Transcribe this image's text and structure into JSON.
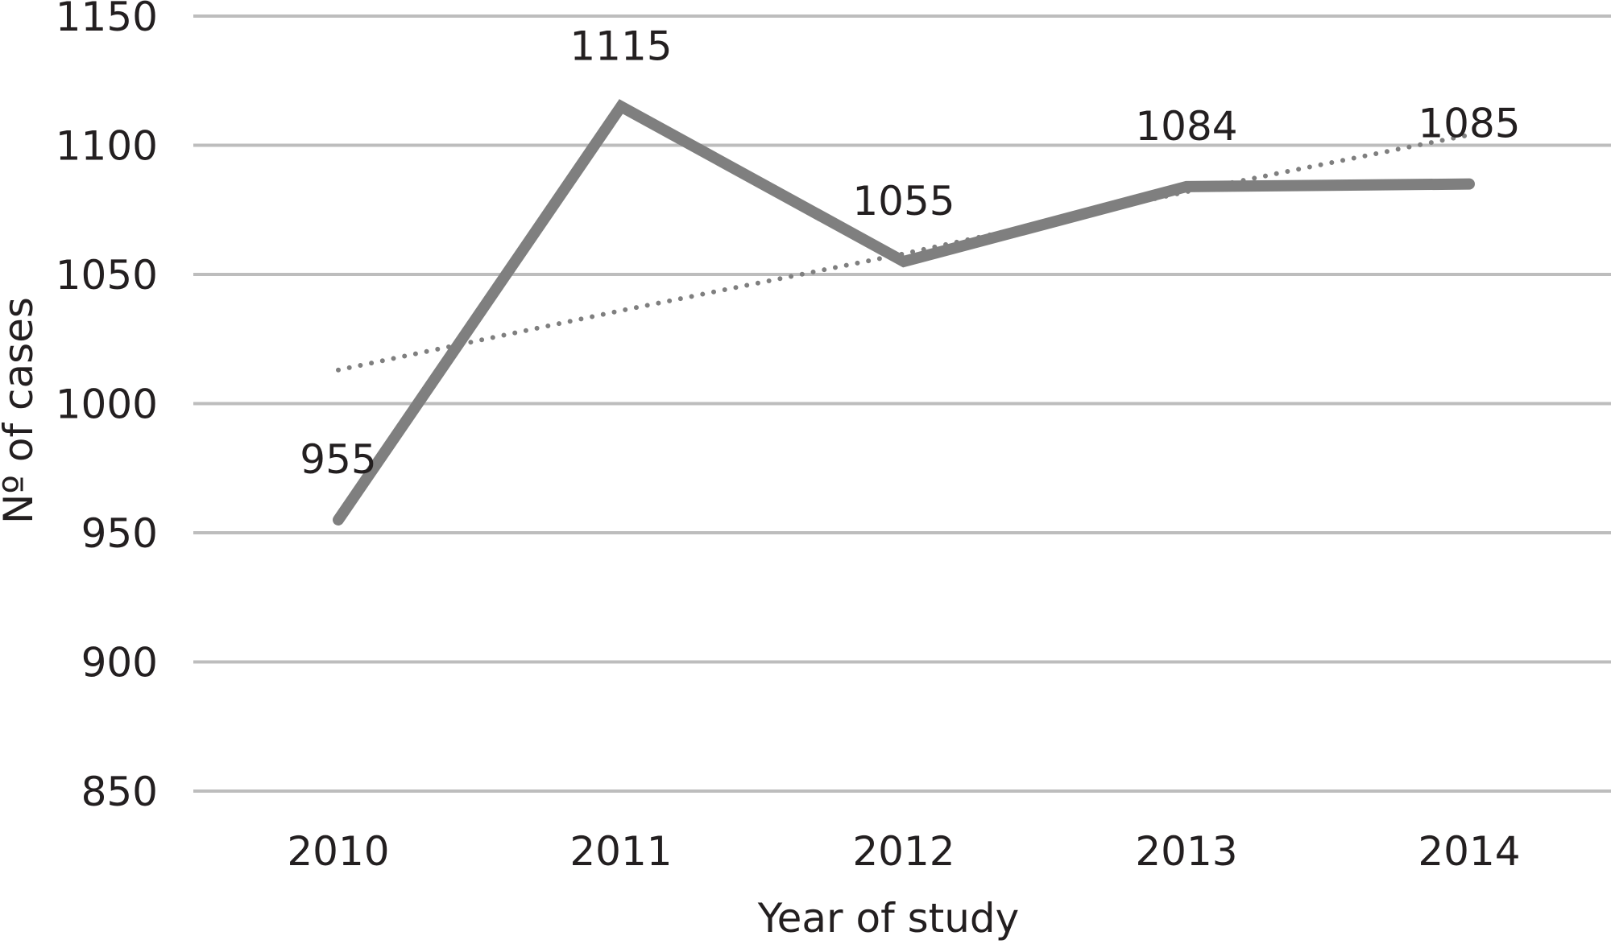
{
  "chart_data": {
    "type": "line",
    "title": "",
    "xlabel": "Year of study",
    "ylabel": "Nº of cases",
    "categories": [
      "2010",
      "2011",
      "2012",
      "2013",
      "2014"
    ],
    "series": [
      {
        "values": [
          955,
          1115,
          1055,
          1084,
          1085
        ],
        "data_labels": [
          "955",
          "1115",
          "1055",
          "1084",
          "1085"
        ],
        "style": "solid"
      },
      {
        "values": [
          1013,
          1036,
          1058,
          1082,
          1104
        ],
        "style": "dotted-linear-trendline"
      }
    ],
    "ylim": [
      850,
      1150
    ],
    "yticks": [
      850,
      900,
      950,
      1000,
      1050,
      1100,
      1150
    ],
    "ytick_labels": [
      "850",
      "900",
      "950",
      "1000",
      "1050",
      "1100",
      "1150"
    ],
    "grid": true,
    "legend": "none",
    "colors": {
      "series": "#7f7f7f",
      "grid": "#bdbdbd",
      "text": "#231f20"
    }
  }
}
